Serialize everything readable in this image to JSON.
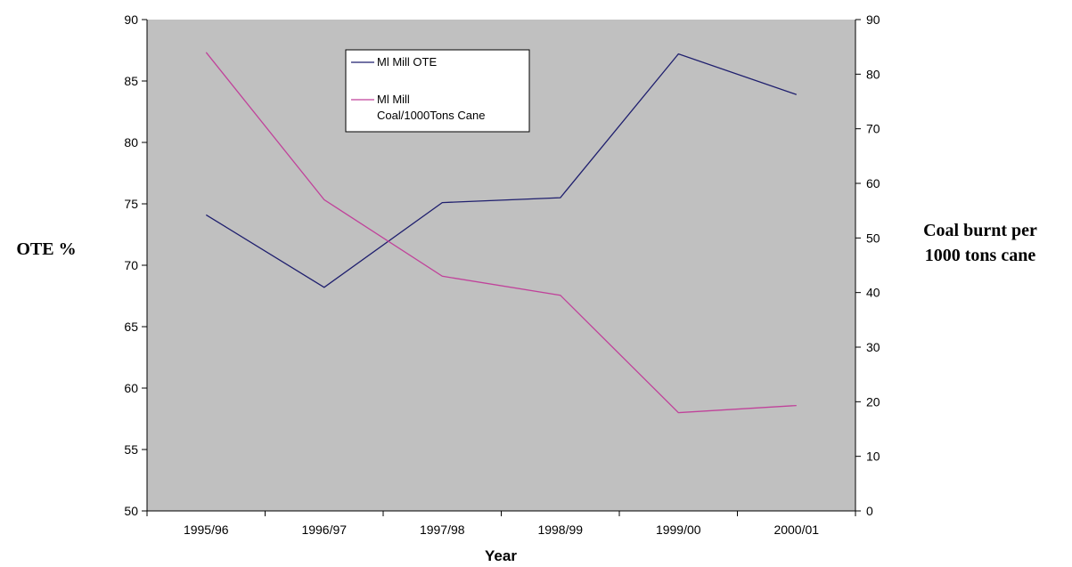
{
  "chart_data": {
    "type": "line",
    "categories": [
      "1995/96",
      "1996/97",
      "1997/98",
      "1998/99",
      "1999/00",
      "2000/01"
    ],
    "xlabel": "Year",
    "ylabel_left": "OTE %",
    "ylabel_right": [
      "Coal burnt per",
      "1000 tons cane"
    ],
    "ylim_left": [
      50,
      90
    ],
    "ylim_right": [
      0,
      90
    ],
    "yticks_left": [
      50,
      55,
      60,
      65,
      70,
      75,
      80,
      85,
      90
    ],
    "yticks_right": [
      0,
      10,
      20,
      30,
      40,
      50,
      60,
      70,
      80,
      90
    ],
    "grid": false,
    "legend_position": "top-center",
    "plot_background": "#c0c0c0",
    "series": [
      {
        "name": "Ml Mill OTE",
        "axis": "left",
        "color": "#1f1f6e",
        "values": [
          74.1,
          68.2,
          75.1,
          75.5,
          87.2,
          83.9
        ]
      },
      {
        "name_lines": [
          "Ml Mill",
          "Coal/1000Tons Cane"
        ],
        "axis": "right",
        "color": "#c0429a",
        "values": [
          84,
          57,
          43,
          39.5,
          18,
          19.3
        ]
      }
    ]
  }
}
